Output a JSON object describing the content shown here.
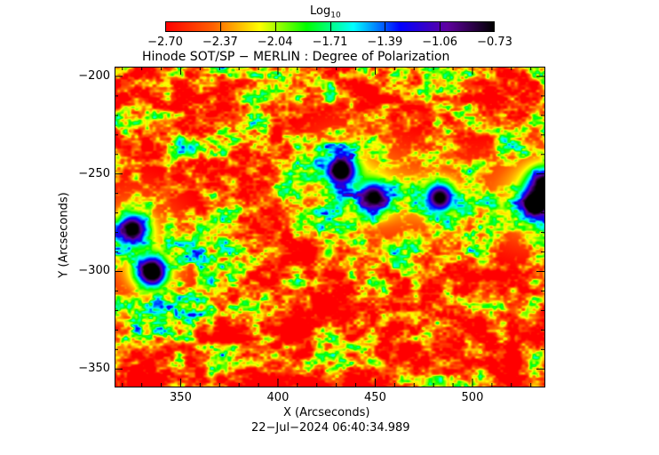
{
  "chart_data": {
    "type": "heatmap",
    "title": "Hinode SOT/SP - MERLIN : Degree of Polarization",
    "xlabel": "X (Arcseconds)",
    "ylabel": "Y (Arcseconds)",
    "xlim": [
      316,
      537
    ],
    "ylim": [
      -359,
      -195
    ],
    "xticks": [
      350,
      400,
      450,
      500
    ],
    "yticks": [
      -200,
      -250,
      -300,
      -350
    ],
    "colorbar": {
      "label": "Log",
      "label_sub": "10",
      "range": [
        -2.7,
        -0.73
      ],
      "ticks": [
        "-2.70",
        "-2.37",
        "-2.04",
        "-1.71",
        "-1.39",
        "-1.06",
        "-0.73"
      ],
      "colors": [
        "#ff0000",
        "#ff6000",
        "#ffff00",
        "#00ff00",
        "#00ffff",
        "#0000ff",
        "#6000a0",
        "#000000"
      ]
    },
    "features": [
      {
        "x": 335,
        "y": -300,
        "value": -0.8
      },
      {
        "x": 325,
        "y": -278,
        "value": -0.9
      },
      {
        "x": 432,
        "y": -248,
        "value": -0.85
      },
      {
        "x": 449,
        "y": -262,
        "value": -1.0
      },
      {
        "x": 483,
        "y": -262,
        "value": -0.95
      },
      {
        "x": 532,
        "y": -265,
        "value": -0.8
      },
      {
        "x": 537,
        "y": -255,
        "value": -0.8
      }
    ],
    "timestamp": "22-Jul-2024 06:40:34.989"
  }
}
